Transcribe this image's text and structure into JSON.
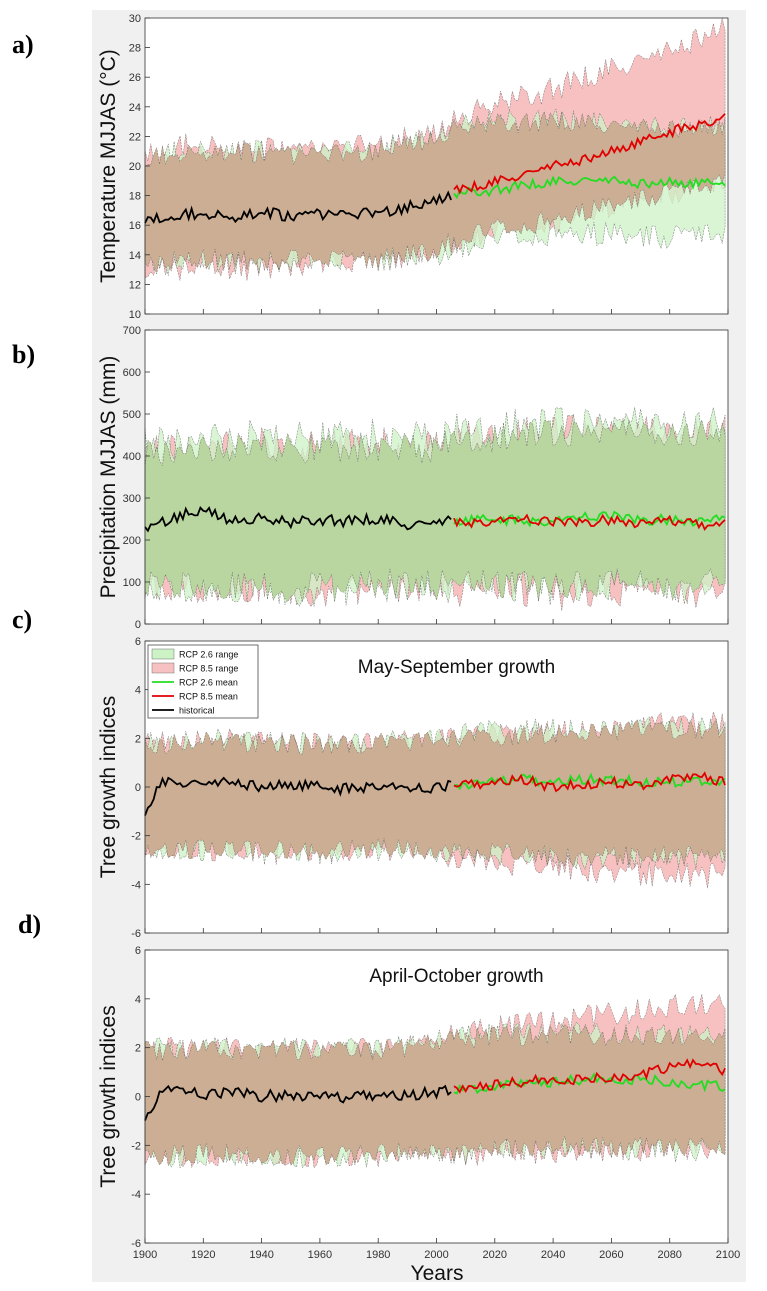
{
  "panel_letters": [
    "a)",
    "b)",
    "c)",
    "d)"
  ],
  "colors": {
    "rcp26_range": "#ccf2c6",
    "rcp85_range": "#f7c1c1",
    "overlap_range": "#cbae93",
    "rcp26_mean": "#22dd22",
    "rcp85_mean": "#e00000",
    "historical": "#000000",
    "panel_bg": "#ffffff",
    "figure_bg": "#f0f0f0"
  },
  "x_axis": {
    "label": "Years",
    "ticks": [
      "1900",
      "1920",
      "1940",
      "1960",
      "1980",
      "2000",
      "2020",
      "2040",
      "2060",
      "2080",
      "2100"
    ],
    "range": [
      1900,
      2100
    ]
  },
  "legend": {
    "entries": [
      "RCP 2.6 range",
      "RCP 8.5 range",
      "RCP 2.6 mean",
      "RCP 8.5 mean",
      "historical"
    ]
  },
  "chart_data": [
    {
      "type": "area",
      "panel": "a)",
      "title": "",
      "ylabel": "Temperature MJJAS (°C)",
      "ylim": [
        10,
        30
      ],
      "yticks": [
        "10",
        "12",
        "14",
        "16",
        "18",
        "20",
        "22",
        "24",
        "26",
        "28",
        "30"
      ],
      "xlim": [
        1900,
        2100
      ],
      "series": [
        {
          "name": "historical",
          "x": [
            1900,
            1910,
            1920,
            1930,
            1940,
            1950,
            1960,
            1970,
            1980,
            1990,
            2000,
            2005
          ],
          "values": [
            16.5,
            16.7,
            16.8,
            16.6,
            16.9,
            16.6,
            16.8,
            16.7,
            16.9,
            17.2,
            17.6,
            18.0
          ]
        },
        {
          "name": "RCP 2.6 mean",
          "x": [
            2006,
            2020,
            2030,
            2040,
            2050,
            2060,
            2070,
            2080,
            2090,
            2099
          ],
          "values": [
            18.1,
            18.4,
            18.7,
            18.9,
            19.0,
            19.0,
            18.8,
            18.9,
            18.8,
            18.9
          ]
        },
        {
          "name": "RCP 8.5 mean",
          "x": [
            2006,
            2020,
            2030,
            2040,
            2050,
            2060,
            2070,
            2080,
            2090,
            2099
          ],
          "values": [
            18.3,
            18.9,
            19.4,
            20.0,
            20.4,
            21.0,
            21.6,
            22.3,
            22.8,
            23.3
          ]
        },
        {
          "name": "RCP 2.6 range",
          "x": [
            1900,
            1920,
            1940,
            1960,
            1980,
            2000,
            2006,
            2020,
            2040,
            2060,
            2080,
            2099
          ],
          "lower": [
            13.4,
            13.8,
            13.6,
            13.9,
            13.8,
            14.2,
            14.6,
            15.2,
            15.6,
            15.4,
            15.4,
            15.6
          ],
          "upper": [
            20.5,
            21.0,
            20.8,
            20.7,
            21.0,
            21.7,
            22.4,
            22.8,
            23.0,
            22.6,
            22.4,
            22.6
          ]
        },
        {
          "name": "RCP 8.5 range",
          "x": [
            1900,
            1920,
            1940,
            1960,
            1980,
            2000,
            2006,
            2020,
            2040,
            2060,
            2080,
            2099
          ],
          "lower": [
            13.0,
            13.4,
            13.2,
            13.6,
            13.8,
            14.4,
            15.0,
            15.8,
            16.4,
            17.4,
            18.4,
            19.0
          ],
          "upper": [
            21.0,
            21.4,
            21.0,
            21.0,
            21.4,
            22.0,
            23.0,
            24.0,
            25.2,
            26.4,
            27.6,
            29.4
          ]
        }
      ]
    },
    {
      "type": "area",
      "panel": "b)",
      "title": "",
      "ylabel": "Precipitation MJJAS (mm)",
      "ylim": [
        0,
        700
      ],
      "yticks": [
        "0",
        "100",
        "200",
        "300",
        "400",
        "500",
        "600",
        "700"
      ],
      "xlim": [
        1900,
        2100
      ],
      "series": [
        {
          "name": "historical",
          "x": [
            1900,
            1910,
            1920,
            1930,
            1940,
            1950,
            1960,
            1970,
            1980,
            1990,
            2000,
            2005
          ],
          "values": [
            230,
            255,
            270,
            245,
            250,
            240,
            250,
            245,
            250,
            235,
            240,
            245
          ]
        },
        {
          "name": "RCP 2.6 mean",
          "x": [
            2006,
            2020,
            2030,
            2040,
            2050,
            2060,
            2070,
            2080,
            2090,
            2099
          ],
          "values": [
            245,
            250,
            245,
            245,
            255,
            260,
            245,
            250,
            245,
            250
          ]
        },
        {
          "name": "RCP 8.5 mean",
          "x": [
            2006,
            2020,
            2030,
            2040,
            2050,
            2060,
            2070,
            2080,
            2090,
            2099
          ],
          "values": [
            240,
            245,
            250,
            245,
            240,
            250,
            240,
            245,
            235,
            240
          ]
        },
        {
          "name": "RCP 2.6 range",
          "x": [
            1900,
            1920,
            1940,
            1960,
            1980,
            2000,
            2006,
            2020,
            2040,
            2060,
            2080,
            2099
          ],
          "lower": [
            100,
            95,
            95,
            90,
            100,
            95,
            100,
            95,
            95,
            100,
            95,
            100
          ],
          "upper": [
            420,
            430,
            440,
            430,
            440,
            430,
            450,
            460,
            470,
            480,
            470,
            480
          ]
        },
        {
          "name": "RCP 8.5 range",
          "x": [
            1900,
            1920,
            1940,
            1960,
            1980,
            2000,
            2006,
            2020,
            2040,
            2060,
            2080,
            2099
          ],
          "lower": [
            100,
            95,
            95,
            90,
            100,
            95,
            90,
            85,
            80,
            85,
            85,
            90
          ],
          "upper": [
            400,
            410,
            420,
            410,
            420,
            410,
            430,
            440,
            450,
            460,
            450,
            460
          ]
        }
      ]
    },
    {
      "type": "area",
      "panel": "c)",
      "title": "May-September growth",
      "ylabel": "Tree growth indices",
      "ylim": [
        -6,
        6
      ],
      "yticks": [
        "-6",
        "-4",
        "-2",
        "0",
        "2",
        "4",
        "6"
      ],
      "xlim": [
        1900,
        2100
      ],
      "series": [
        {
          "name": "historical",
          "x": [
            1900,
            1905,
            1910,
            1920,
            1930,
            1940,
            1950,
            1960,
            1970,
            1980,
            1990,
            2000,
            2005
          ],
          "values": [
            -1.0,
            0.1,
            0.2,
            0.1,
            0.2,
            0.0,
            0.1,
            0.0,
            -0.1,
            0.1,
            -0.1,
            0.0,
            0.1
          ]
        },
        {
          "name": "RCP 2.6 mean",
          "x": [
            2006,
            2020,
            2030,
            2040,
            2050,
            2060,
            2070,
            2080,
            2090,
            2099
          ],
          "values": [
            0.1,
            0.2,
            0.3,
            0.2,
            0.3,
            0.3,
            0.2,
            0.2,
            0.3,
            0.2
          ]
        },
        {
          "name": "RCP 8.5 mean",
          "x": [
            2006,
            2020,
            2030,
            2040,
            2050,
            2060,
            2070,
            2080,
            2090,
            2099
          ],
          "values": [
            0.0,
            0.2,
            0.3,
            0.0,
            0.1,
            0.2,
            0.1,
            0.3,
            0.5,
            0.2
          ]
        },
        {
          "name": "RCP 2.6 range",
          "x": [
            1900,
            1920,
            1940,
            1960,
            1980,
            2000,
            2006,
            2020,
            2040,
            2060,
            2080,
            2099
          ],
          "lower": [
            -2.6,
            -2.5,
            -2.6,
            -2.6,
            -2.5,
            -2.5,
            -2.6,
            -2.6,
            -2.8,
            -2.8,
            -2.8,
            -2.8
          ],
          "upper": [
            1.7,
            1.8,
            1.8,
            1.7,
            1.8,
            1.8,
            2.0,
            2.2,
            2.3,
            2.3,
            2.3,
            2.4
          ]
        },
        {
          "name": "RCP 8.5 range",
          "x": [
            1900,
            1920,
            1940,
            1960,
            1980,
            2000,
            2006,
            2020,
            2040,
            2060,
            2080,
            2099
          ],
          "lower": [
            -2.6,
            -2.5,
            -2.6,
            -2.6,
            -2.5,
            -2.5,
            -2.8,
            -3.0,
            -3.2,
            -3.4,
            -3.6,
            -3.6
          ],
          "upper": [
            1.7,
            1.8,
            1.8,
            1.7,
            1.8,
            1.8,
            1.9,
            2.0,
            2.2,
            2.3,
            2.5,
            2.6
          ]
        }
      ]
    },
    {
      "type": "area",
      "panel": "d)",
      "title": "April-October growth",
      "ylabel": "Tree growth indices",
      "ylim": [
        -6,
        6
      ],
      "yticks": [
        "-6",
        "-4",
        "-2",
        "0",
        "2",
        "4",
        "6"
      ],
      "xlim": [
        1900,
        2100
      ],
      "series": [
        {
          "name": "historical",
          "x": [
            1900,
            1905,
            1910,
            1920,
            1930,
            1940,
            1950,
            1960,
            1970,
            1980,
            1990,
            2000,
            2005
          ],
          "values": [
            -1.0,
            0.2,
            0.3,
            0.1,
            0.2,
            0.0,
            0.1,
            0.0,
            -0.1,
            0.1,
            0.0,
            0.2,
            0.3
          ]
        },
        {
          "name": "RCP 2.6 mean",
          "x": [
            2006,
            2020,
            2030,
            2040,
            2050,
            2060,
            2070,
            2080,
            2090,
            2099
          ],
          "values": [
            0.3,
            0.4,
            0.6,
            0.6,
            0.7,
            0.7,
            0.7,
            0.6,
            0.5,
            0.4
          ]
        },
        {
          "name": "RCP 8.5 mean",
          "x": [
            2006,
            2020,
            2030,
            2040,
            2050,
            2060,
            2070,
            2080,
            2090,
            2099
          ],
          "values": [
            0.3,
            0.5,
            0.6,
            0.7,
            0.7,
            0.8,
            0.9,
            1.2,
            1.4,
            1.0
          ]
        },
        {
          "name": "RCP 2.6 range",
          "x": [
            1900,
            1920,
            1940,
            1960,
            1980,
            2000,
            2006,
            2020,
            2040,
            2060,
            2080,
            2099
          ],
          "lower": [
            -2.4,
            -2.3,
            -2.4,
            -2.4,
            -2.3,
            -2.2,
            -2.2,
            -2.1,
            -2.0,
            -2.0,
            -2.1,
            -2.1
          ],
          "upper": [
            1.8,
            1.9,
            1.9,
            1.8,
            1.9,
            2.1,
            2.3,
            2.4,
            2.5,
            2.4,
            2.4,
            2.5
          ]
        },
        {
          "name": "RCP 8.5 range",
          "x": [
            1900,
            1920,
            1940,
            1960,
            1980,
            2000,
            2006,
            2020,
            2040,
            2060,
            2080,
            2099
          ],
          "lower": [
            -2.4,
            -2.3,
            -2.4,
            -2.4,
            -2.3,
            -2.2,
            -2.3,
            -2.2,
            -2.2,
            -2.1,
            -2.0,
            -2.0
          ],
          "upper": [
            1.8,
            1.9,
            1.9,
            1.8,
            1.9,
            2.1,
            2.4,
            2.7,
            3.0,
            3.3,
            3.6,
            3.8
          ]
        }
      ]
    }
  ]
}
